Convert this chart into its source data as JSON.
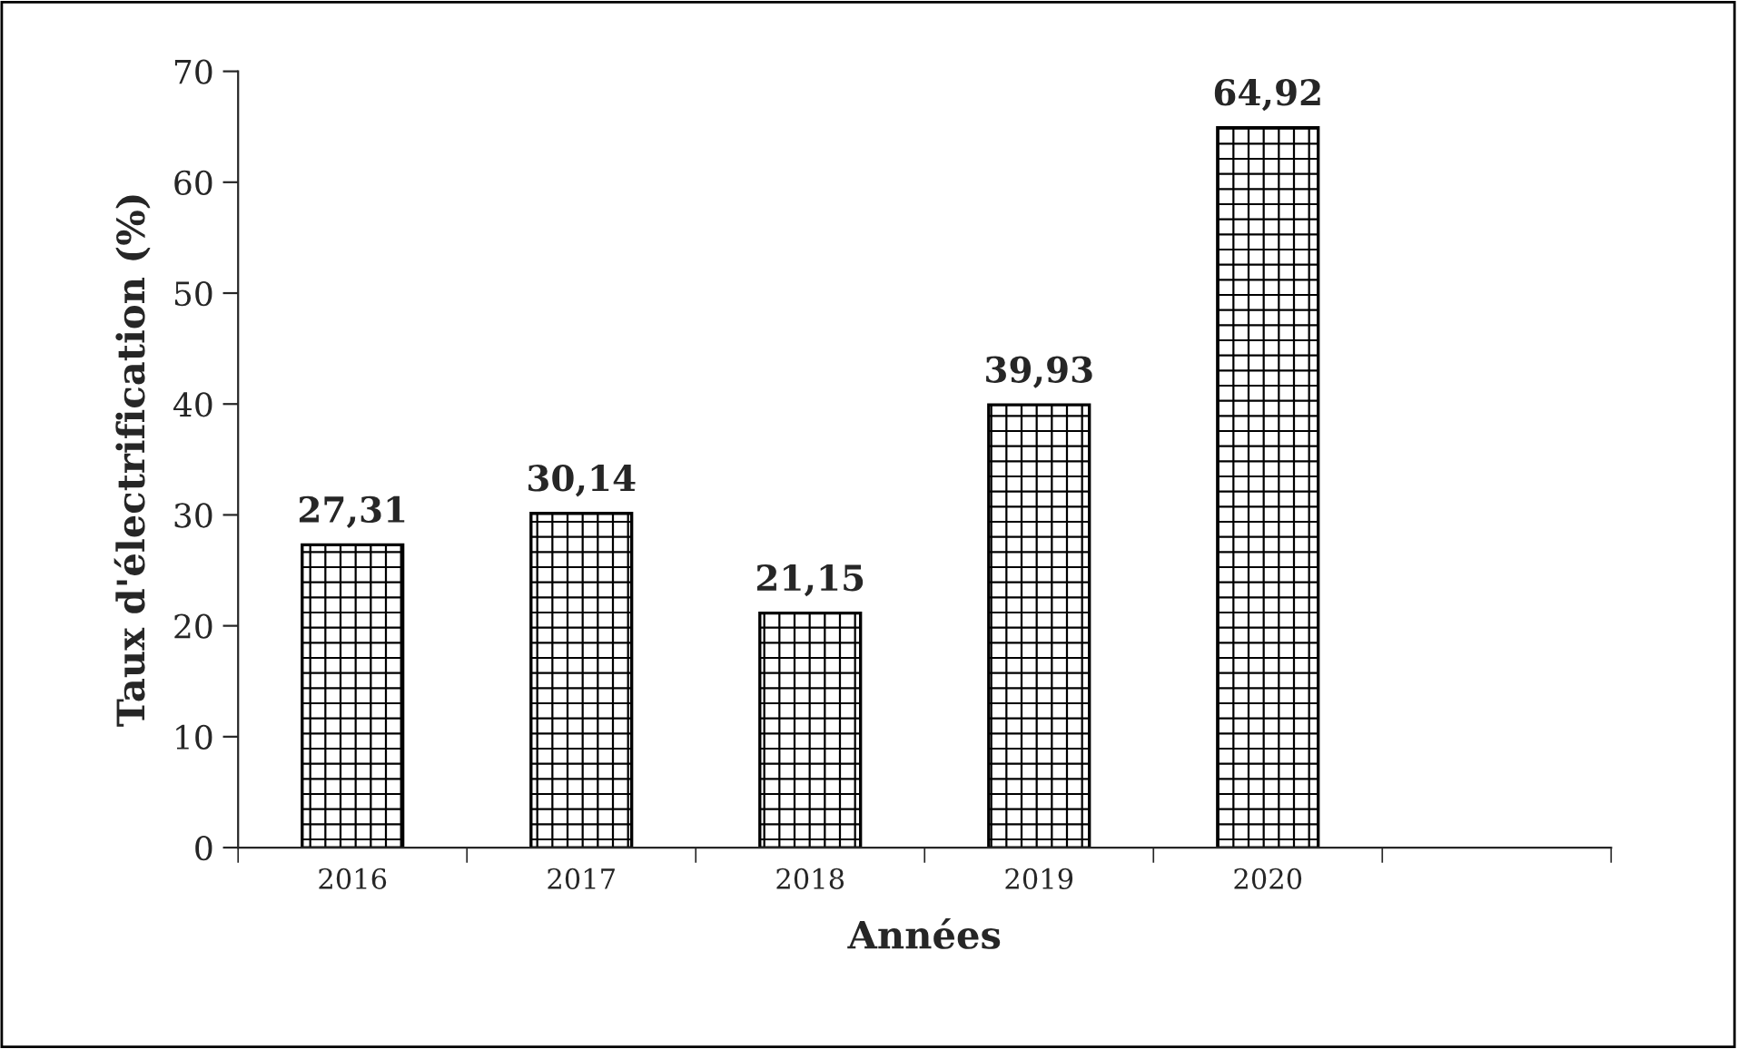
{
  "chart_data": {
    "type": "bar",
    "xlabel": "Années",
    "ylabel": "Taux d'électrification (%)",
    "categories": [
      "2016",
      "2017",
      "2018",
      "2019",
      "2020",
      null
    ],
    "values": [
      27.31,
      30.14,
      21.15,
      39.93,
      64.92,
      null
    ],
    "value_labels": [
      "27,31",
      "30,14",
      "21,15",
      "39,93",
      "64,92",
      null
    ],
    "color": "#000000",
    "ylim": [
      0,
      70
    ],
    "yticks": [
      0,
      10,
      20,
      30,
      40,
      50,
      60,
      70
    ],
    "grid": false,
    "legend": false
  }
}
